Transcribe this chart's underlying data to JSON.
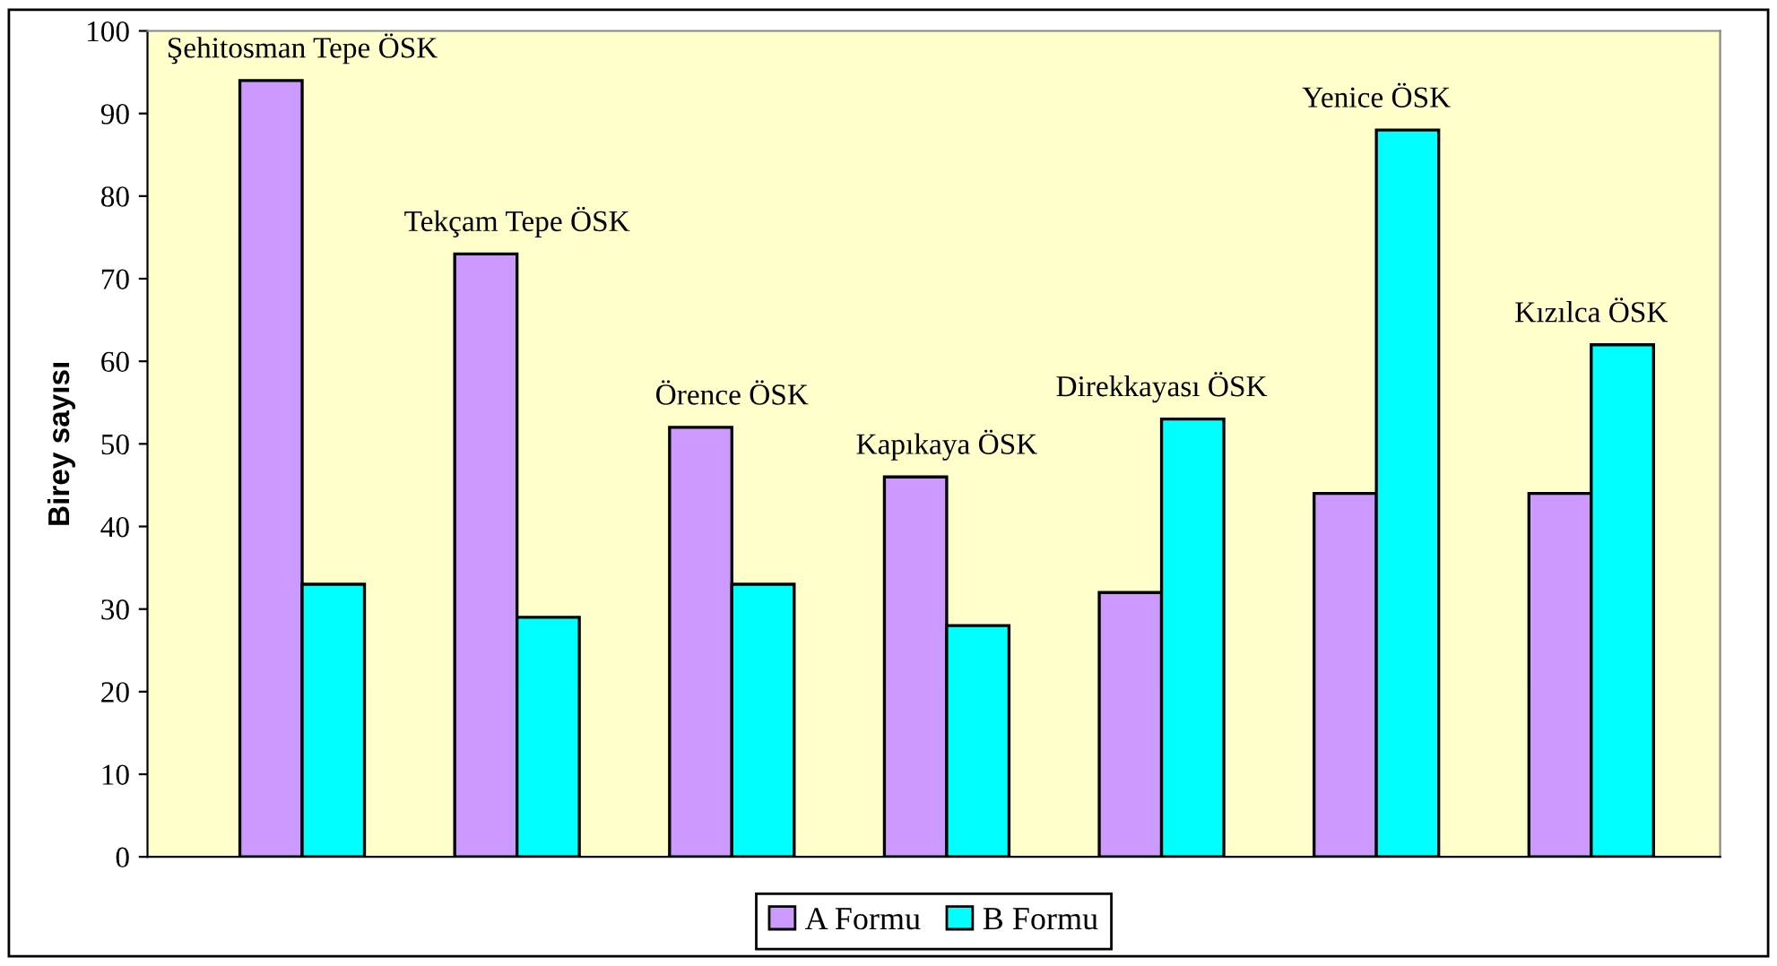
{
  "chart_data": {
    "type": "bar",
    "ylabel": "Birey sayısı",
    "categories": [
      "Şehitosman Tepe ÖSK",
      "Tekçam Tepe ÖSK",
      "Örence ÖSK",
      "Kapıkaya ÖSK",
      "Direkkayası ÖSK",
      "Yenice ÖSK",
      "Kızılca ÖSK"
    ],
    "series": [
      {
        "name": "A Formu",
        "color": "#cc99ff",
        "values": [
          94,
          73,
          52,
          46,
          32,
          44,
          44
        ]
      },
      {
        "name": "B Formu",
        "color": "#00ffff",
        "values": [
          33,
          29,
          33,
          28,
          53,
          88,
          62
        ]
      }
    ],
    "ylim": [
      0,
      100
    ],
    "yticks": [
      0,
      10,
      20,
      30,
      40,
      50,
      60,
      70,
      80,
      90,
      100
    ],
    "grid": false,
    "legend": "bottom",
    "tick_labels": "y"
  }
}
